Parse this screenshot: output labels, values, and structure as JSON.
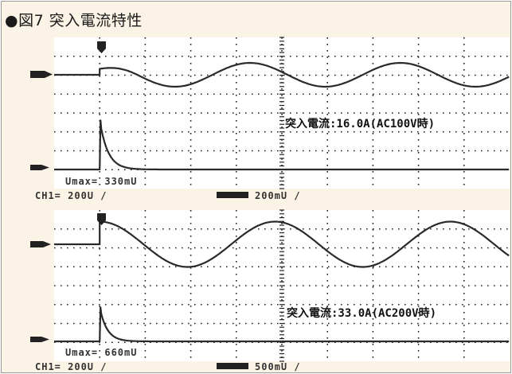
{
  "figure_title": "●図7 突入電流特性",
  "chart_data": [
    {
      "type": "line",
      "annotation": "突入電流:16.0A(AC100V時)",
      "readouts": [
        "Umax= 330mU",
        "CH1= 200U /",
        "200mU /"
      ],
      "trigger_division": 1,
      "series": [
        {
          "values_desc": "voltage",
          "amplitude_div": 0.63,
          "period_div": 3.3,
          "phase_div": 1.0
        },
        {
          "values_desc": "current",
          "peak_div": 2.6,
          "decay_div": 0.18
        }
      ]
    },
    {
      "type": "line",
      "annotation": "突入電流:33.0A(AC200V時)",
      "readouts": [
        "Umax= 660mU",
        "CH1= 200U /",
        "500mU /"
      ],
      "trigger_division": 1,
      "series": [
        {
          "values_desc": "voltage",
          "amplitude_div": 1.2,
          "period_div": 3.85,
          "phase_div": 1.0
        },
        {
          "values_desc": "current",
          "peak_div": 1.8,
          "decay_div": 0.16
        }
      ]
    }
  ]
}
